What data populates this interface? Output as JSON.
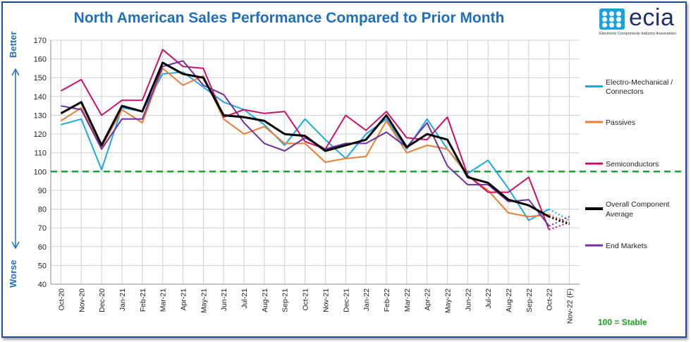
{
  "title": "North American Sales Performance Compared to Prior Month",
  "logo": {
    "word": "ecia",
    "tagline": "Electronic Components Industry Association"
  },
  "side_labels": {
    "top": "Better",
    "bottom": "Worse"
  },
  "footnote": "100 = Stable",
  "chart_data": {
    "type": "line",
    "title": "North American Sales Performance Compared to Prior Month",
    "xlabel": "",
    "ylabel": "",
    "ylim": [
      40,
      170
    ],
    "yticks": [
      40,
      50,
      60,
      70,
      80,
      90,
      100,
      110,
      120,
      130,
      140,
      150,
      160,
      170
    ],
    "grid": true,
    "legend_position": "right",
    "reference_line": {
      "y": 100,
      "color": "#1aa33a",
      "style": "dashed"
    },
    "categories": [
      "Oct-20",
      "Nov-20",
      "Dec-20",
      "Jan-21",
      "Feb-21",
      "Mar-21",
      "Apr-21",
      "May-21",
      "Jun-21",
      "Jul-21",
      "Aug-21",
      "Sep-21",
      "Oct-21",
      "Nov-21",
      "Dec-21",
      "Jan-22",
      "Feb-22",
      "Mar-22",
      "Apr-22",
      "May-22",
      "Jun-22",
      "Jul-22",
      "Aug-22",
      "Sep-22",
      "Oct-22",
      "Nov-22 (F)"
    ],
    "forecast_from_index": 24,
    "series": [
      {
        "name": "Electro-Mechanical / Connectors",
        "color": "#1aa8e6",
        "width": 2,
        "values": [
          125,
          128,
          101,
          134,
          132,
          152,
          153,
          145,
          137,
          133,
          125,
          114,
          128,
          117,
          107,
          120,
          128,
          112,
          128,
          112,
          99,
          106,
          91,
          74,
          80,
          74
        ]
      },
      {
        "name": "Passives",
        "color": "#ee7d31",
        "width": 2,
        "values": [
          127,
          134,
          113,
          133,
          126,
          155,
          146,
          151,
          128,
          120,
          124,
          115,
          115,
          105,
          107,
          108,
          127,
          110,
          114,
          112,
          98,
          90,
          78,
          76,
          77,
          73
        ]
      },
      {
        "name": "Semiconductors",
        "color": "#cc1166",
        "width": 2,
        "values": [
          143,
          149,
          130,
          138,
          138,
          165,
          156,
          155,
          129,
          133,
          131,
          132,
          116,
          112,
          130,
          122,
          132,
          118,
          117,
          129,
          98,
          89,
          89,
          97,
          69,
          73
        ]
      },
      {
        "name": "Overall Component Average",
        "color": "#000000",
        "width": 3,
        "values": [
          131,
          137,
          114,
          135,
          132,
          158,
          152,
          150,
          130,
          129,
          127,
          120,
          119,
          111,
          114,
          117,
          130,
          113,
          120,
          117,
          97,
          94,
          85,
          82,
          76,
          72
        ]
      },
      {
        "name": "End Markets",
        "color": "#7030a0",
        "width": 2,
        "values": [
          135,
          133,
          112,
          128,
          128,
          156,
          159,
          146,
          141,
          126,
          115,
          111,
          118,
          112,
          115,
          115,
          121,
          113,
          126,
          103,
          93,
          93,
          84,
          85,
          71,
          76
        ]
      }
    ]
  }
}
